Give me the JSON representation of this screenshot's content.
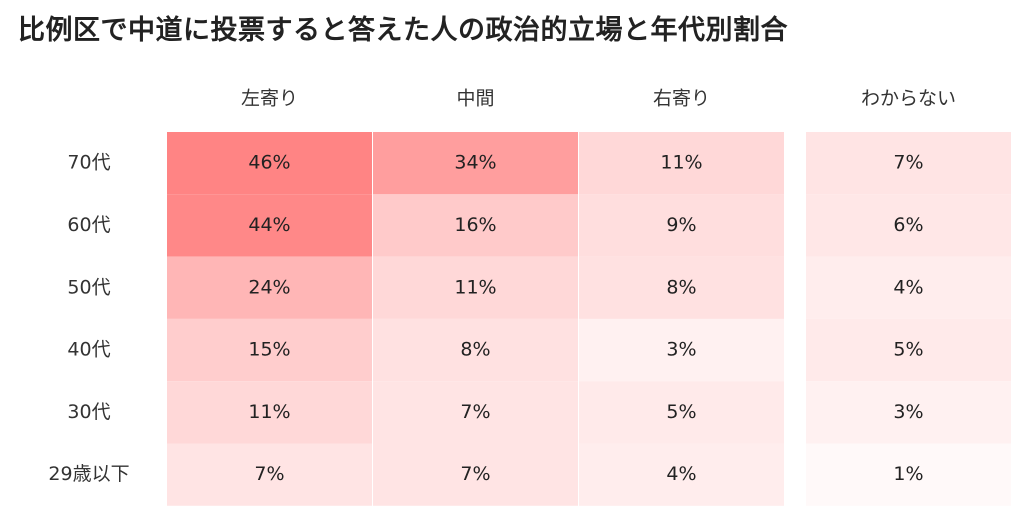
{
  "chart_data": {
    "type": "heatmap",
    "title": "比例区で中道に投票すると答えた人の政治的立場と年代別割合",
    "columns": [
      "左寄り",
      "中間",
      "右寄り",
      "わからない"
    ],
    "rows": [
      "70代",
      "60代",
      "50代",
      "40代",
      "30代",
      "29歳以下"
    ],
    "values": [
      [
        46,
        34,
        11,
        7
      ],
      [
        44,
        16,
        9,
        6
      ],
      [
        24,
        11,
        8,
        4
      ],
      [
        15,
        8,
        3,
        5
      ],
      [
        11,
        7,
        5,
        3
      ],
      [
        7,
        7,
        4,
        1
      ]
    ],
    "unit": "%",
    "value_range": [
      0,
      50
    ],
    "color_low": "#ffffff",
    "color_high": "#ff7b7b"
  }
}
